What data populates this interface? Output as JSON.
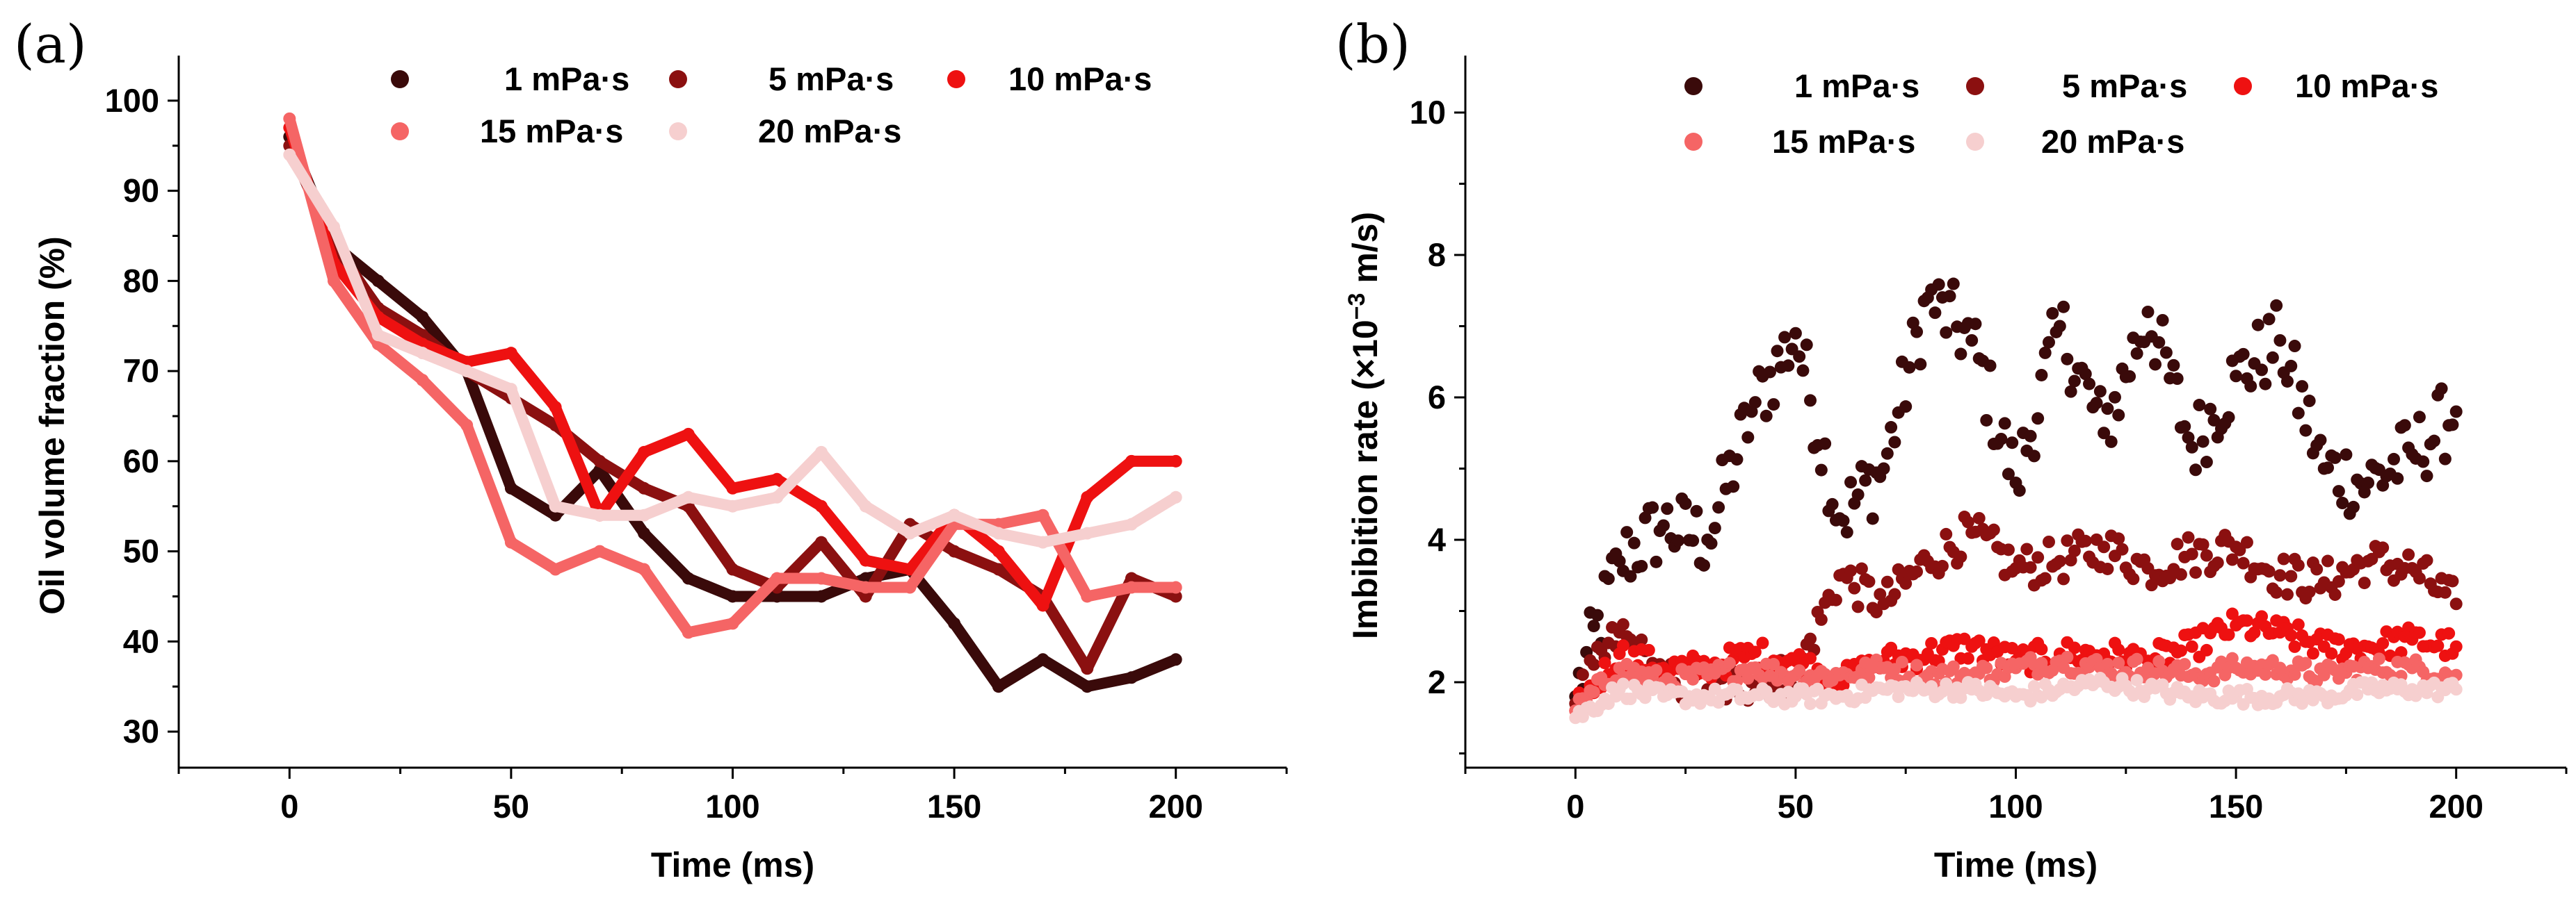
{
  "chart_data": [
    {
      "panel_label": "(a)",
      "type": "line",
      "xlabel": "Time (ms)",
      "ylabel": "Oil volume fraction (%)",
      "xlim": [
        -25,
        225
      ],
      "ylim": [
        26,
        105
      ],
      "xticks": [
        0,
        50,
        100,
        150,
        200
      ],
      "yticks": [
        30,
        40,
        50,
        60,
        70,
        80,
        90,
        100
      ],
      "legend_position": "top",
      "x": [
        0,
        10,
        20,
        30,
        40,
        50,
        60,
        70,
        80,
        90,
        100,
        110,
        120,
        130,
        140,
        150,
        160,
        170,
        180,
        190,
        200
      ],
      "series": [
        {
          "name": "1 mPa·s",
          "color": "#3a0a0a",
          "values": [
            96,
            84,
            80,
            76,
            70,
            57,
            54,
            59,
            52,
            47,
            45,
            45,
            45,
            47,
            48,
            42,
            35,
            38,
            35,
            36,
            38
          ]
        },
        {
          "name": "5 mPa·s",
          "color": "#8b1010",
          "values": [
            95,
            84,
            77,
            74,
            70,
            67,
            64,
            60,
            57,
            55,
            48,
            46,
            51,
            45,
            53,
            50,
            48,
            45,
            37,
            47,
            45
          ]
        },
        {
          "name": "10 mPa·s",
          "color": "#ee1111",
          "values": [
            97,
            82,
            76,
            73,
            71,
            72,
            66,
            54,
            61,
            63,
            57,
            58,
            55,
            49,
            48,
            54,
            50,
            44,
            56,
            60,
            60
          ]
        },
        {
          "name": "15 mPa·s",
          "color": "#f56565",
          "values": [
            98,
            80,
            73,
            69,
            64,
            51,
            48,
            50,
            48,
            41,
            42,
            47,
            47,
            46,
            46,
            53,
            53,
            54,
            45,
            46,
            46
          ]
        },
        {
          "name": "20 mPa·s",
          "color": "#f6cfcf",
          "values": [
            94,
            86,
            74,
            72,
            70,
            68,
            55,
            54,
            54,
            56,
            55,
            56,
            61,
            55,
            52,
            54,
            52,
            51,
            52,
            53,
            56
          ]
        }
      ]
    },
    {
      "panel_label": "(b)",
      "type": "scatter",
      "xlabel": "Time (ms)",
      "ylabel": "Imbibition rate (×10",
      "ylabel_exp": "−3",
      "ylabel_tail": " m/s)",
      "xlim": [
        -25,
        225
      ],
      "ylim": [
        0.8,
        10.8
      ],
      "xticks": [
        0,
        50,
        100,
        150,
        200
      ],
      "yticks": [
        2,
        4,
        6,
        8,
        10
      ],
      "legend_position": "top",
      "x": [
        0,
        10,
        20,
        30,
        40,
        50,
        60,
        70,
        80,
        90,
        100,
        110,
        120,
        130,
        140,
        150,
        160,
        170,
        180,
        190,
        200
      ],
      "series": [
        {
          "name": "1 mPa·s",
          "color": "#3a0a0a",
          "values": [
            1.8,
            3.7,
            4.2,
            4.0,
            5.8,
            6.9,
            4.3,
            5.0,
            7.4,
            6.8,
            4.8,
            7.0,
            5.5,
            7.2,
            5.3,
            6.3,
            6.8,
            5.0,
            4.8,
            5.2,
            5.8
          ]
        },
        {
          "name": "5 mPa·s",
          "color": "#8b1010",
          "values": [
            1.7,
            2.7,
            2.0,
            1.9,
            2.0,
            2.1,
            3.5,
            3.1,
            3.7,
            4.1,
            3.6,
            3.7,
            3.9,
            3.6,
            3.8,
            3.9,
            3.5,
            3.4,
            3.7,
            3.6,
            3.1
          ]
        },
        {
          "name": "10 mPa·s",
          "color": "#ee1111",
          "values": [
            1.6,
            2.4,
            2.2,
            2.2,
            2.4,
            2.3,
            2.0,
            2.3,
            2.4,
            2.5,
            2.3,
            2.4,
            2.4,
            2.3,
            2.5,
            2.8,
            2.7,
            2.5,
            2.5,
            2.6,
            2.5
          ]
        },
        {
          "name": "15 mPa·s",
          "color": "#f56565",
          "values": [
            1.6,
            2.2,
            2.0,
            2.1,
            2.2,
            2.1,
            2.1,
            2.2,
            2.1,
            2.1,
            2.2,
            2.3,
            2.2,
            2.2,
            2.1,
            2.2,
            2.2,
            2.1,
            2.2,
            2.2,
            2.1
          ]
        },
        {
          "name": "20 mPa·s",
          "color": "#f6cfcf",
          "values": [
            1.5,
            1.9,
            1.8,
            1.8,
            1.8,
            1.8,
            1.8,
            1.9,
            1.9,
            1.9,
            1.8,
            1.9,
            2.0,
            1.9,
            1.8,
            1.8,
            1.8,
            1.8,
            1.9,
            1.9,
            1.9
          ]
        }
      ]
    }
  ]
}
